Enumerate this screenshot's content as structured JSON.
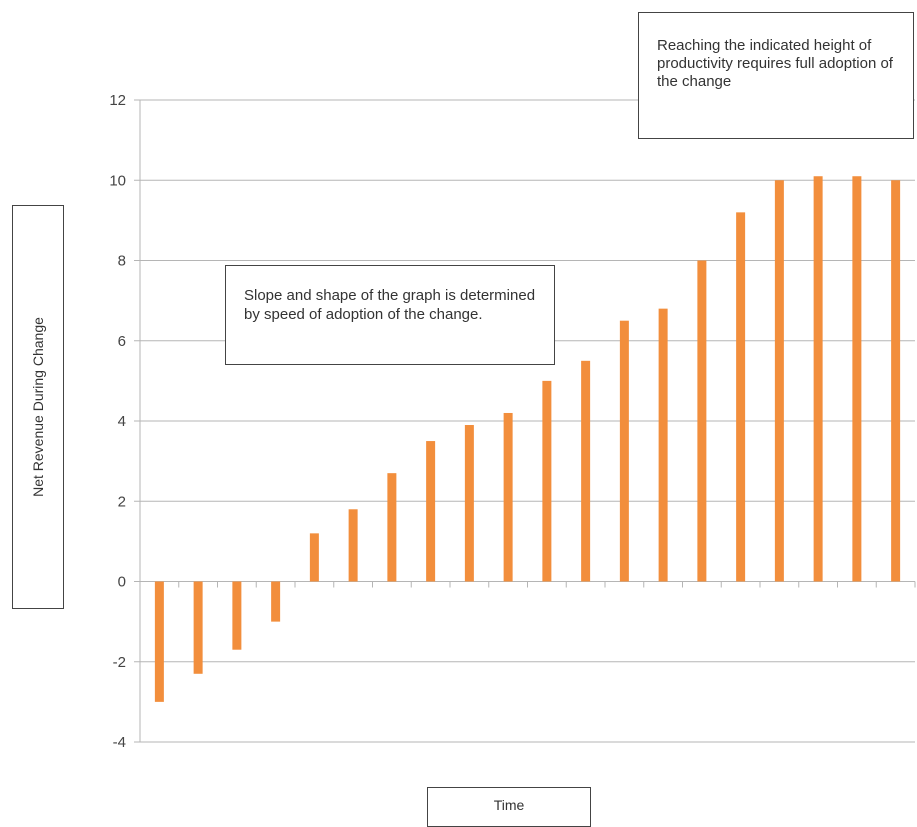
{
  "chart_data": {
    "type": "bar",
    "title": "",
    "xlabel": "Time",
    "ylabel": "Net Revenue During Change",
    "ylim": [
      -4,
      12
    ],
    "yticks": [
      -4,
      -2,
      0,
      2,
      4,
      6,
      8,
      10,
      12
    ],
    "grid": true,
    "color": "#f28e3c",
    "values": [
      -3,
      -2.3,
      -1.7,
      -1,
      1.2,
      1.8,
      2.7,
      3.5,
      3.9,
      4.2,
      5,
      5.5,
      6.5,
      6.8,
      8,
      9.2,
      10,
      10.1,
      10.1,
      10
    ],
    "annotations": [
      "Reaching the indicated height of productivity requires full adoption of the change",
      "Slope and shape of the graph is determined by speed of adoption of the change."
    ]
  }
}
